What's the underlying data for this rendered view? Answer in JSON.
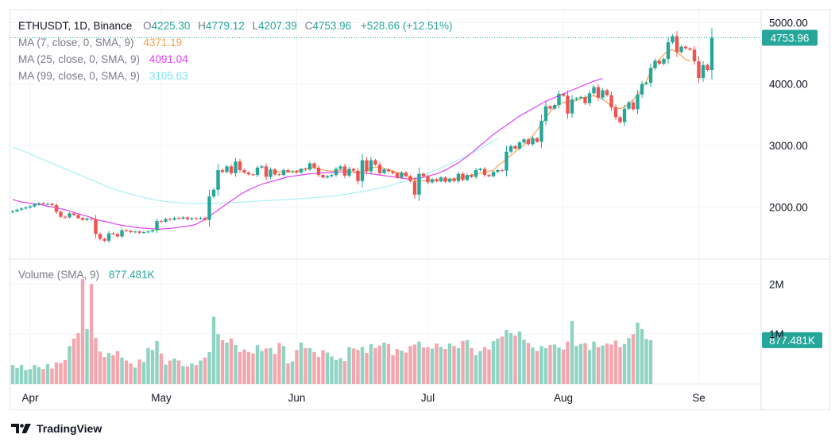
{
  "header": {
    "symbol": "ETHUSDT, 1D, Binance",
    "open_label": "O",
    "open": "4225.30",
    "high_label": "H",
    "high": "4779.12",
    "low_label": "L",
    "low": "4207.39",
    "close_label": "C",
    "close": "4753.96",
    "change": "+528.66 (+12.51%)"
  },
  "indicators": [
    {
      "label": "MA (7, close, 0, SMA, 9)",
      "value": "4371.19",
      "color": "#f7a04b"
    },
    {
      "label": "MA (25, close, 0, SMA, 9)",
      "value": "4091.04",
      "color": "#e040fb"
    },
    {
      "label": "MA (99, close, 0, SMA, 9)",
      "value": "3105.63",
      "color": "#7fe3f5"
    }
  ],
  "volume_legend": {
    "label": "Volume (SMA, 9)",
    "value": "877.481K"
  },
  "colors": {
    "up": "#26a69a",
    "down": "#ef5350",
    "vol_up": "#8fd3c2",
    "vol_down": "#f4a6ae",
    "ma7": "#f7a04b",
    "ma25": "#e040fb",
    "ma99": "#a9f0f7",
    "grid": "#f0f3fa",
    "price_tag": "#26a69a"
  },
  "footer": {
    "brand": "TradingView"
  },
  "chart_data": {
    "type": "candlestick",
    "title": "ETHUSDT, 1D, Binance",
    "x_tick_labels": [
      "Apr",
      "May",
      "Jun",
      "Jul",
      "Aug",
      "Se"
    ],
    "x_tick_days": [
      4,
      34,
      65,
      95,
      126,
      157
    ],
    "price_axis": {
      "ylim": [
        1150,
        5200
      ],
      "tick_values": [
        2000,
        3000,
        4000,
        5000
      ],
      "tick_labels": [
        "2000.00",
        "3000.00",
        "4000.00",
        "5000.00"
      ]
    },
    "volume_axis": {
      "ylim": [
        0,
        2500000
      ],
      "tick_values": [
        1000000,
        2000000
      ],
      "tick_labels": [
        "1M",
        "2M"
      ]
    },
    "last_price_label": "4753.96",
    "last_volume_label": "877.481K",
    "day_index_first": 0,
    "closes": [
      1930,
      1955,
      1975,
      1990,
      2010,
      2040,
      2060,
      2045,
      2050,
      2030,
      1920,
      1840,
      1830,
      1895,
      1870,
      1820,
      1790,
      1810,
      1800,
      1560,
      1480,
      1450,
      1570,
      1560,
      1520,
      1620,
      1610,
      1590,
      1600,
      1580,
      1590,
      1600,
      1620,
      1770,
      1760,
      1805,
      1795,
      1820,
      1810,
      1830,
      1800,
      1815,
      1810,
      1820,
      1790,
      2170,
      2280,
      2600,
      2570,
      2660,
      2550,
      2740,
      2600,
      2560,
      2530,
      2520,
      2640,
      2660,
      2490,
      2610,
      2530,
      2520,
      2600,
      2570,
      2580,
      2560,
      2620,
      2610,
      2710,
      2640,
      2520,
      2480,
      2500,
      2520,
      2620,
      2660,
      2510,
      2620,
      2590,
      2420,
      2760,
      2580,
      2760,
      2690,
      2550,
      2610,
      2580,
      2550,
      2480,
      2560,
      2500,
      2420,
      2200,
      2540,
      2500,
      2400,
      2450,
      2420,
      2480,
      2410,
      2460,
      2420,
      2540,
      2440,
      2520,
      2490,
      2600,
      2620,
      2520,
      2500,
      2570,
      2600,
      2590,
      2900,
      2990,
      2950,
      3050,
      3100,
      3020,
      3120,
      3060,
      3400,
      3640,
      3600,
      3660,
      3840,
      3810,
      3520,
      3750,
      3770,
      3790,
      3690,
      3850,
      3950,
      3780,
      3900,
      3820,
      3620,
      3460,
      3380,
      3600,
      3700,
      3590,
      3830,
      4000,
      4020,
      4260,
      4380,
      4330,
      4410,
      4680,
      4780,
      4520,
      4610,
      4580,
      4560,
      4370,
      4100,
      4310,
      4230,
      4753.96
    ],
    "ma7_start_day": 60,
    "ma7": [
      2580,
      2575,
      2570,
      2565,
      2575,
      2585,
      2600,
      2620,
      2630,
      2640,
      2620,
      2600,
      2590,
      2580,
      2590,
      2600,
      2590,
      2580,
      2560,
      2550,
      2570,
      2600,
      2630,
      2650,
      2640,
      2630,
      2600,
      2580,
      2560,
      2540,
      2520,
      2480,
      2440,
      2430,
      2420,
      2440,
      2440,
      2440,
      2430,
      2440,
      2450,
      2460,
      2470,
      2480,
      2500,
      2520,
      2540,
      2550,
      2560,
      2580,
      2600,
      2670,
      2720,
      2780,
      2840,
      2900,
      2960,
      3010,
      3080,
      3160,
      3250,
      3350,
      3450,
      3550,
      3620,
      3680,
      3700,
      3710,
      3720,
      3730,
      3760,
      3780,
      3800,
      3810,
      3790,
      3750,
      3700,
      3640,
      3620,
      3600,
      3630,
      3680,
      3750,
      3820,
      3920,
      4050,
      4200,
      4320,
      4400,
      4480,
      4540,
      4560,
      4520,
      4460,
      4400,
      4371.19
    ],
    "ma25_start_day": 0,
    "ma25": [
      2120,
      2100,
      2080,
      2070,
      2060,
      2050,
      2040,
      2030,
      2010,
      2000,
      1985,
      1970,
      1955,
      1935,
      1910,
      1890,
      1870,
      1850,
      1825,
      1800,
      1780,
      1765,
      1750,
      1730,
      1715,
      1700,
      1690,
      1680,
      1670,
      1660,
      1655,
      1650,
      1645,
      1640,
      1640,
      1645,
      1650,
      1660,
      1670,
      1680,
      1690,
      1700,
      1720,
      1760,
      1800,
      1850,
      1900,
      1950,
      2000,
      2050,
      2100,
      2150,
      2200,
      2240,
      2280,
      2310,
      2340,
      2370,
      2390,
      2410,
      2430,
      2450,
      2470,
      2490,
      2500,
      2510,
      2520,
      2530,
      2540,
      2545,
      2550,
      2555,
      2560,
      2560,
      2565,
      2570,
      2570,
      2570,
      2565,
      2560,
      2555,
      2550,
      2540,
      2530,
      2520,
      2510,
      2500,
      2490,
      2480,
      2470,
      2460,
      2460,
      2460,
      2470,
      2480,
      2500,
      2520,
      2540,
      2570,
      2600,
      2640,
      2680,
      2720,
      2770,
      2820,
      2880,
      2940,
      3000,
      3060,
      3120,
      3180,
      3230,
      3280,
      3330,
      3380,
      3430,
      3480,
      3520,
      3560,
      3600,
      3640,
      3680,
      3720,
      3750,
      3780,
      3810,
      3840,
      3870,
      3900,
      3930,
      3960,
      3990,
      4020,
      4050,
      4070,
      4091.04
    ],
    "ma99_start_day": 0,
    "ma99": [
      2970,
      2950,
      2920,
      2890,
      2860,
      2830,
      2800,
      2770,
      2740,
      2710,
      2680,
      2650,
      2620,
      2590,
      2560,
      2530,
      2500,
      2470,
      2440,
      2410,
      2380,
      2350,
      2320,
      2290,
      2270,
      2250,
      2230,
      2210,
      2190,
      2170,
      2155,
      2140,
      2125,
      2110,
      2100,
      2090,
      2080,
      2075,
      2070,
      2065,
      2060,
      2058,
      2056,
      2055,
      2055,
      2056,
      2058,
      2060,
      2063,
      2066,
      2070,
      2074,
      2078,
      2082,
      2086,
      2090,
      2094,
      2098,
      2102,
      2106,
      2110,
      2114,
      2118,
      2122,
      2126,
      2130,
      2135,
      2140,
      2146,
      2152,
      2158,
      2164,
      2170,
      2178,
      2186,
      2195,
      2205,
      2215,
      2226,
      2238,
      2250,
      2263,
      2277,
      2292,
      2308,
      2325,
      2343,
      2362,
      2382,
      2403,
      2425,
      2448,
      2472,
      2497,
      2523,
      2550,
      2578,
      2607,
      2637,
      2668,
      2700,
      2733,
      2767,
      2802,
      2838,
      2875,
      2913,
      2952,
      2992,
      3033,
      3075,
      3105.63
    ],
    "volume": [
      380,
      320,
      380,
      280,
      300,
      380,
      340,
      300,
      400,
      310,
      430,
      420,
      480,
      760,
      910,
      1020,
      2100,
      1100,
      2000,
      920,
      650,
      540,
      620,
      580,
      660,
      530,
      470,
      410,
      330,
      490,
      440,
      720,
      680,
      860,
      610,
      390,
      470,
      510,
      470,
      360,
      350,
      410,
      380,
      470,
      530,
      640,
      1350,
      1000,
      880,
      830,
      910,
      780,
      640,
      690,
      640,
      610,
      780,
      660,
      710,
      720,
      600,
      820,
      760,
      410,
      450,
      680,
      830,
      720,
      720,
      640,
      540,
      680,
      630,
      550,
      480,
      520,
      460,
      740,
      710,
      680,
      740,
      620,
      800,
      720,
      770,
      830,
      800,
      580,
      700,
      670,
      630,
      760,
      790,
      850,
      730,
      740,
      710,
      810,
      740,
      700,
      810,
      760,
      720,
      860,
      880,
      720,
      580,
      660,
      740,
      690,
      860,
      910,
      950,
      1080,
      1020,
      970,
      1050,
      890,
      820,
      730,
      660,
      760,
      720,
      780,
      790,
      730,
      690,
      850,
      1260,
      760,
      800,
      820,
      680,
      850,
      740,
      770,
      810,
      790,
      870,
      740,
      800,
      920,
      1000,
      1230,
      1100,
      900,
      877.481
    ]
  }
}
